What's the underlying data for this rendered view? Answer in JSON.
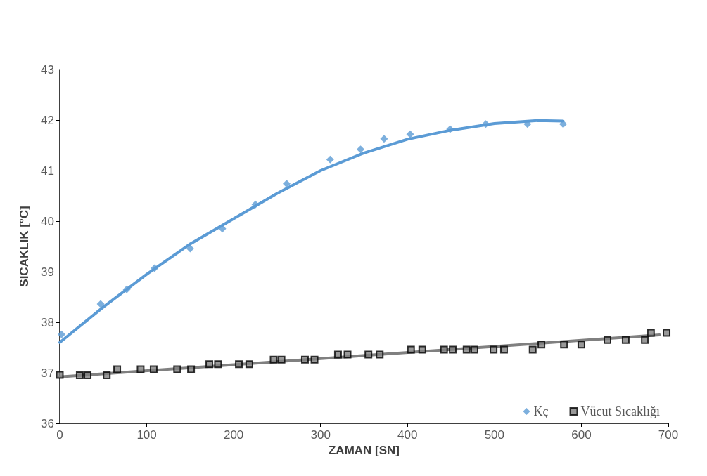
{
  "chart_data": {
    "type": "scatter",
    "xlabel": "ZAMAN [SN]",
    "ylabel": "SICAKLIK [°C]",
    "xlim": [
      0,
      700
    ],
    "xticks": [
      0,
      100,
      200,
      300,
      400,
      500,
      600,
      700
    ],
    "ylim": [
      36,
      43
    ],
    "yticks": [
      36,
      37,
      38,
      39,
      40,
      41,
      42,
      43
    ],
    "grid": false,
    "legend": "bottom right",
    "series": [
      {
        "name": "Kç",
        "marker": "diamond",
        "color": "#5b9bd5",
        "x": [
          2,
          47,
          77,
          109,
          150,
          187,
          225,
          261,
          311,
          346,
          373,
          403,
          449,
          490,
          538,
          579
        ],
        "values": [
          37.76,
          38.36,
          38.65,
          39.07,
          39.46,
          39.85,
          40.33,
          40.74,
          41.22,
          41.42,
          41.63,
          41.72,
          41.82,
          41.92,
          41.92,
          41.92
        ]
      },
      {
        "name": "Vücut Sıcaklığı",
        "marker": "square",
        "color": "#7f7f7f",
        "x": [
          0,
          23,
          32,
          54,
          66,
          93,
          108,
          135,
          151,
          172,
          182,
          206,
          218,
          246,
          255,
          282,
          293,
          320,
          331,
          355,
          368,
          404,
          417,
          442,
          452,
          468,
          477,
          499,
          511,
          544,
          554,
          580,
          600,
          630,
          651,
          673,
          680,
          698
        ],
        "values": [
          36.96,
          36.95,
          36.95,
          36.95,
          37.07,
          37.07,
          37.07,
          37.07,
          37.07,
          37.17,
          37.17,
          37.17,
          37.17,
          37.26,
          37.26,
          37.26,
          37.26,
          37.36,
          37.36,
          37.36,
          37.36,
          37.46,
          37.46,
          37.46,
          37.46,
          37.46,
          37.46,
          37.46,
          37.46,
          37.46,
          37.56,
          37.56,
          37.56,
          37.65,
          37.65,
          37.65,
          37.79,
          37.79
        ]
      },
      {
        "type": "line",
        "marker": "none",
        "line_style": "solid",
        "color": "#5b9bd5",
        "x": [
          0,
          50,
          100,
          150,
          200,
          250,
          300,
          350,
          400,
          450,
          500,
          550,
          579
        ],
        "values": [
          37.6,
          38.3,
          38.95,
          39.55,
          40.05,
          40.55,
          41.0,
          41.35,
          41.62,
          41.8,
          41.93,
          41.99,
          41.98
        ]
      },
      {
        "type": "line",
        "marker": "none",
        "line_style": "solid",
        "color": "#808080",
        "x": [
          0,
          690
        ],
        "values": [
          36.92,
          37.75
        ]
      }
    ]
  }
}
